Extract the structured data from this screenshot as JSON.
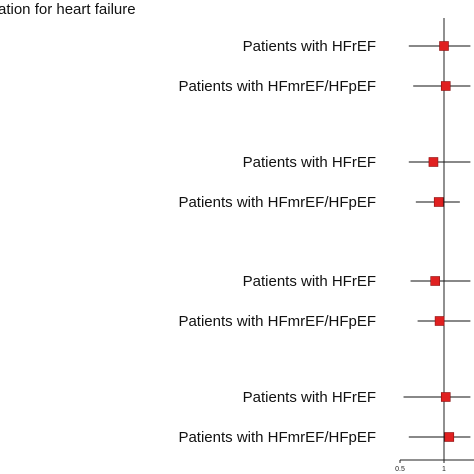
{
  "chart_data": {
    "type": "forest",
    "title": "ation for heart failure",
    "reference_line": 1,
    "x_ticks": [
      {
        "value": 0.5,
        "label": "0.5"
      },
      {
        "value": 1,
        "label": "1"
      }
    ],
    "rows": [
      {
        "label": "Patients with HFrEF",
        "estimate": 1.0,
        "ci_low": 0.6,
        "ci_high": 1.3
      },
      {
        "label": "Patients with HFmrEF/HFpEF",
        "estimate": 1.02,
        "ci_low": 0.65,
        "ci_high": 1.3
      },
      {
        "label": "Patients with HFrEF",
        "estimate": 0.88,
        "ci_low": 0.6,
        "ci_high": 1.3
      },
      {
        "label": "Patients with HFmrEF/HFpEF",
        "estimate": 0.94,
        "ci_low": 0.68,
        "ci_high": 1.18
      },
      {
        "label": "Patients with HFrEF",
        "estimate": 0.9,
        "ci_low": 0.62,
        "ci_high": 1.3
      },
      {
        "label": "Patients with HFmrEF/HFpEF",
        "estimate": 0.95,
        "ci_low": 0.7,
        "ci_high": 1.3
      },
      {
        "label": "Patients with HFrEF",
        "estimate": 1.02,
        "ci_low": 0.54,
        "ci_high": 1.3
      },
      {
        "label": "Patients with HFmrEF/HFpEF",
        "estimate": 1.06,
        "ci_low": 0.6,
        "ci_high": 1.3
      }
    ],
    "colors": {
      "marker": "#e02020",
      "marker_stroke": "#8a1010",
      "line": "#111111",
      "text": "#111111"
    }
  }
}
